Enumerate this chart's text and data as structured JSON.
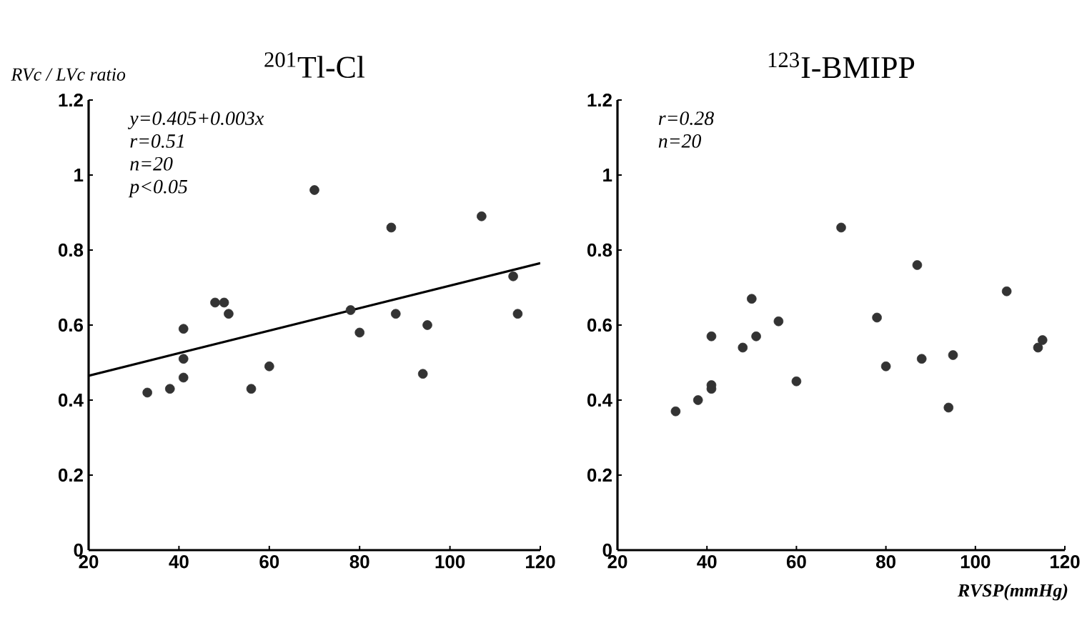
{
  "chart_data": [
    {
      "type": "scatter",
      "title": "$^{201}$Tl-Cl",
      "ylabel": "RVc / LVc ratio",
      "grid": false,
      "xlim": [
        20,
        120
      ],
      "xticks": [
        20,
        40,
        60,
        80,
        100,
        120
      ],
      "ylim": [
        0,
        1.2
      ],
      "yticks": [
        0,
        0.2,
        0.4,
        0.6,
        0.8,
        1,
        1.2
      ],
      "annotations": [
        "y=0.405+0.003x",
        "r=0.51",
        "n=20",
        "p<0.05"
      ],
      "series": [
        {
          "marker": "circle",
          "color": "#333333",
          "x": [
            33,
            38,
            41,
            41,
            41,
            48,
            50,
            51,
            56,
            60,
            70,
            78,
            80,
            87,
            88,
            94,
            95,
            107,
            114,
            115
          ],
          "values": [
            0.42,
            0.43,
            0.59,
            0.51,
            0.46,
            0.66,
            0.66,
            0.63,
            0.43,
            0.49,
            0.96,
            0.64,
            0.58,
            0.86,
            0.63,
            0.47,
            0.6,
            0.89,
            0.73,
            0.63
          ]
        },
        {
          "type": "line",
          "marker": "none",
          "color": "#000000",
          "x": [
            20,
            120
          ],
          "values": [
            0.465,
            0.765
          ]
        }
      ]
    },
    {
      "type": "scatter",
      "title": "$^{123}$I-BMIPP",
      "xlabel": "RVSP(mmHg)",
      "grid": false,
      "xlim": [
        20,
        120
      ],
      "xticks": [
        20,
        40,
        60,
        80,
        100,
        120
      ],
      "ylim": [
        0,
        1.2
      ],
      "yticks": [
        0,
        0.2,
        0.4,
        0.6,
        0.8,
        1,
        1.2
      ],
      "annotations": [
        "r=0.28",
        "n=20"
      ],
      "series": [
        {
          "marker": "circle",
          "color": "#333333",
          "x": [
            33,
            38,
            41,
            41,
            41,
            48,
            50,
            51,
            56,
            60,
            70,
            78,
            80,
            87,
            88,
            94,
            95,
            107,
            114,
            115
          ],
          "values": [
            0.37,
            0.4,
            0.57,
            0.44,
            0.43,
            0.54,
            0.67,
            0.57,
            0.61,
            0.45,
            0.86,
            0.62,
            0.49,
            0.76,
            0.51,
            0.38,
            0.52,
            0.69,
            0.54,
            0.56
          ]
        }
      ]
    }
  ]
}
